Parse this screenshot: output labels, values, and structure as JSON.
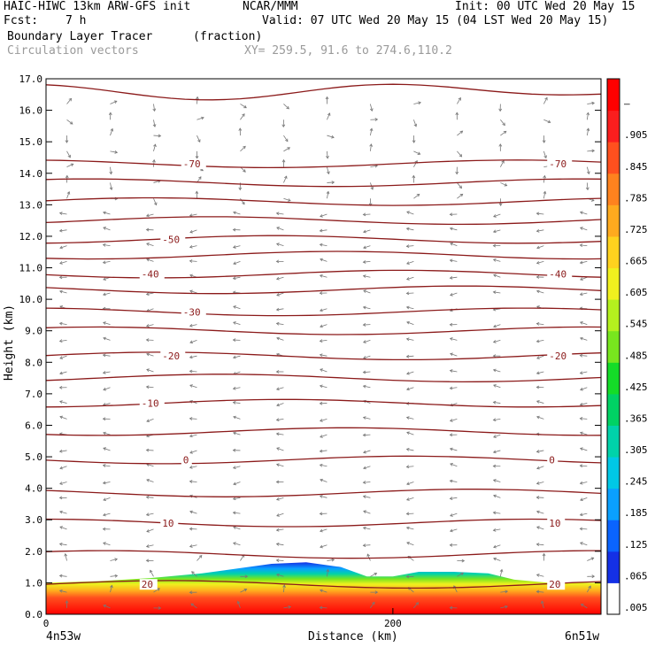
{
  "header": {
    "model": "HAIC-HIWC 13km ARW-GFS init",
    "org": "NCAR/MMM",
    "init": "Init: 00 UTC Wed 20 May 15",
    "fcst_label": "Fcst:",
    "fcst_value": "7 h",
    "valid": "Valid: 07 UTC Wed 20 May 15 (04 LST Wed 20 May 15)",
    "field": "Boundary Layer Tracer",
    "field_units": "(fraction)",
    "vectors": "Circulation vectors",
    "xy": "XY= 259.5, 91.6 to 274.6,110.2"
  },
  "chart_data": {
    "type": "heatmap",
    "xlabel": "Distance (km)",
    "ylabel": "Height (km)",
    "xlim": [
      0,
      320
    ],
    "ylim": [
      0,
      17
    ],
    "x_ticks": [
      0,
      200
    ],
    "y_ticks": [
      "0.0",
      "1.0",
      "2.0",
      "3.0",
      "4.0",
      "5.0",
      "6.0",
      "7.0",
      "8.0",
      "9.0",
      "10.0",
      "11.0",
      "12.0",
      "13.0",
      "14.0",
      "15.0",
      "16.0",
      "17.0"
    ],
    "start_label": "4n53w",
    "end_label": "6n51w",
    "colorbar": {
      "labels": [
        ".005",
        ".065",
        ".125",
        ".185",
        ".245",
        ".305",
        ".365",
        ".425",
        ".485",
        ".545",
        ".605",
        ".665",
        ".725",
        ".785",
        ".845",
        ".905",
        "–"
      ],
      "colors": [
        "#ffffff",
        "#1430e6",
        "#0a64ff",
        "#0aa0ff",
        "#00c8e6",
        "#00d2aa",
        "#00d264",
        "#14dc28",
        "#78e61e",
        "#b4f01e",
        "#f0f01e",
        "#ffd21e",
        "#ffaa1e",
        "#ff821e",
        "#ff501e",
        "#fa1e1e",
        "#ff0000"
      ]
    },
    "temperature_contours": [
      {
        "label": "20",
        "height_km": 0.95
      },
      {
        "label": "10",
        "height_km": 2.9
      },
      {
        "label": "0",
        "height_km": 4.9
      },
      {
        "label": "-10",
        "height_km": 6.7
      },
      {
        "label": "-20",
        "height_km": 8.2
      },
      {
        "label": "-30",
        "height_km": 9.6
      },
      {
        "label": "-40",
        "height_km": 10.8
      },
      {
        "label": "-50",
        "height_km": 11.9
      },
      {
        "label": "-70",
        "height_km": 14.3
      }
    ],
    "contour_heights_km": [
      0.95,
      1.9,
      2.9,
      3.85,
      4.9,
      5.8,
      6.7,
      7.5,
      8.2,
      9.0,
      9.6,
      10.3,
      10.8,
      11.4,
      11.9,
      12.5,
      13.1,
      13.7,
      14.3,
      16.6
    ],
    "tracer_top_km": [
      [
        0,
        1.0
      ],
      [
        30,
        1.05
      ],
      [
        60,
        1.15
      ],
      [
        90,
        1.3
      ],
      [
        110,
        1.45
      ],
      [
        130,
        1.6
      ],
      [
        150,
        1.65
      ],
      [
        170,
        1.5
      ],
      [
        185,
        1.2
      ],
      [
        200,
        1.2
      ],
      [
        215,
        1.35
      ],
      [
        235,
        1.35
      ],
      [
        255,
        1.3
      ],
      [
        270,
        1.1
      ],
      [
        290,
        1.0
      ],
      [
        320,
        1.0
      ]
    ]
  }
}
